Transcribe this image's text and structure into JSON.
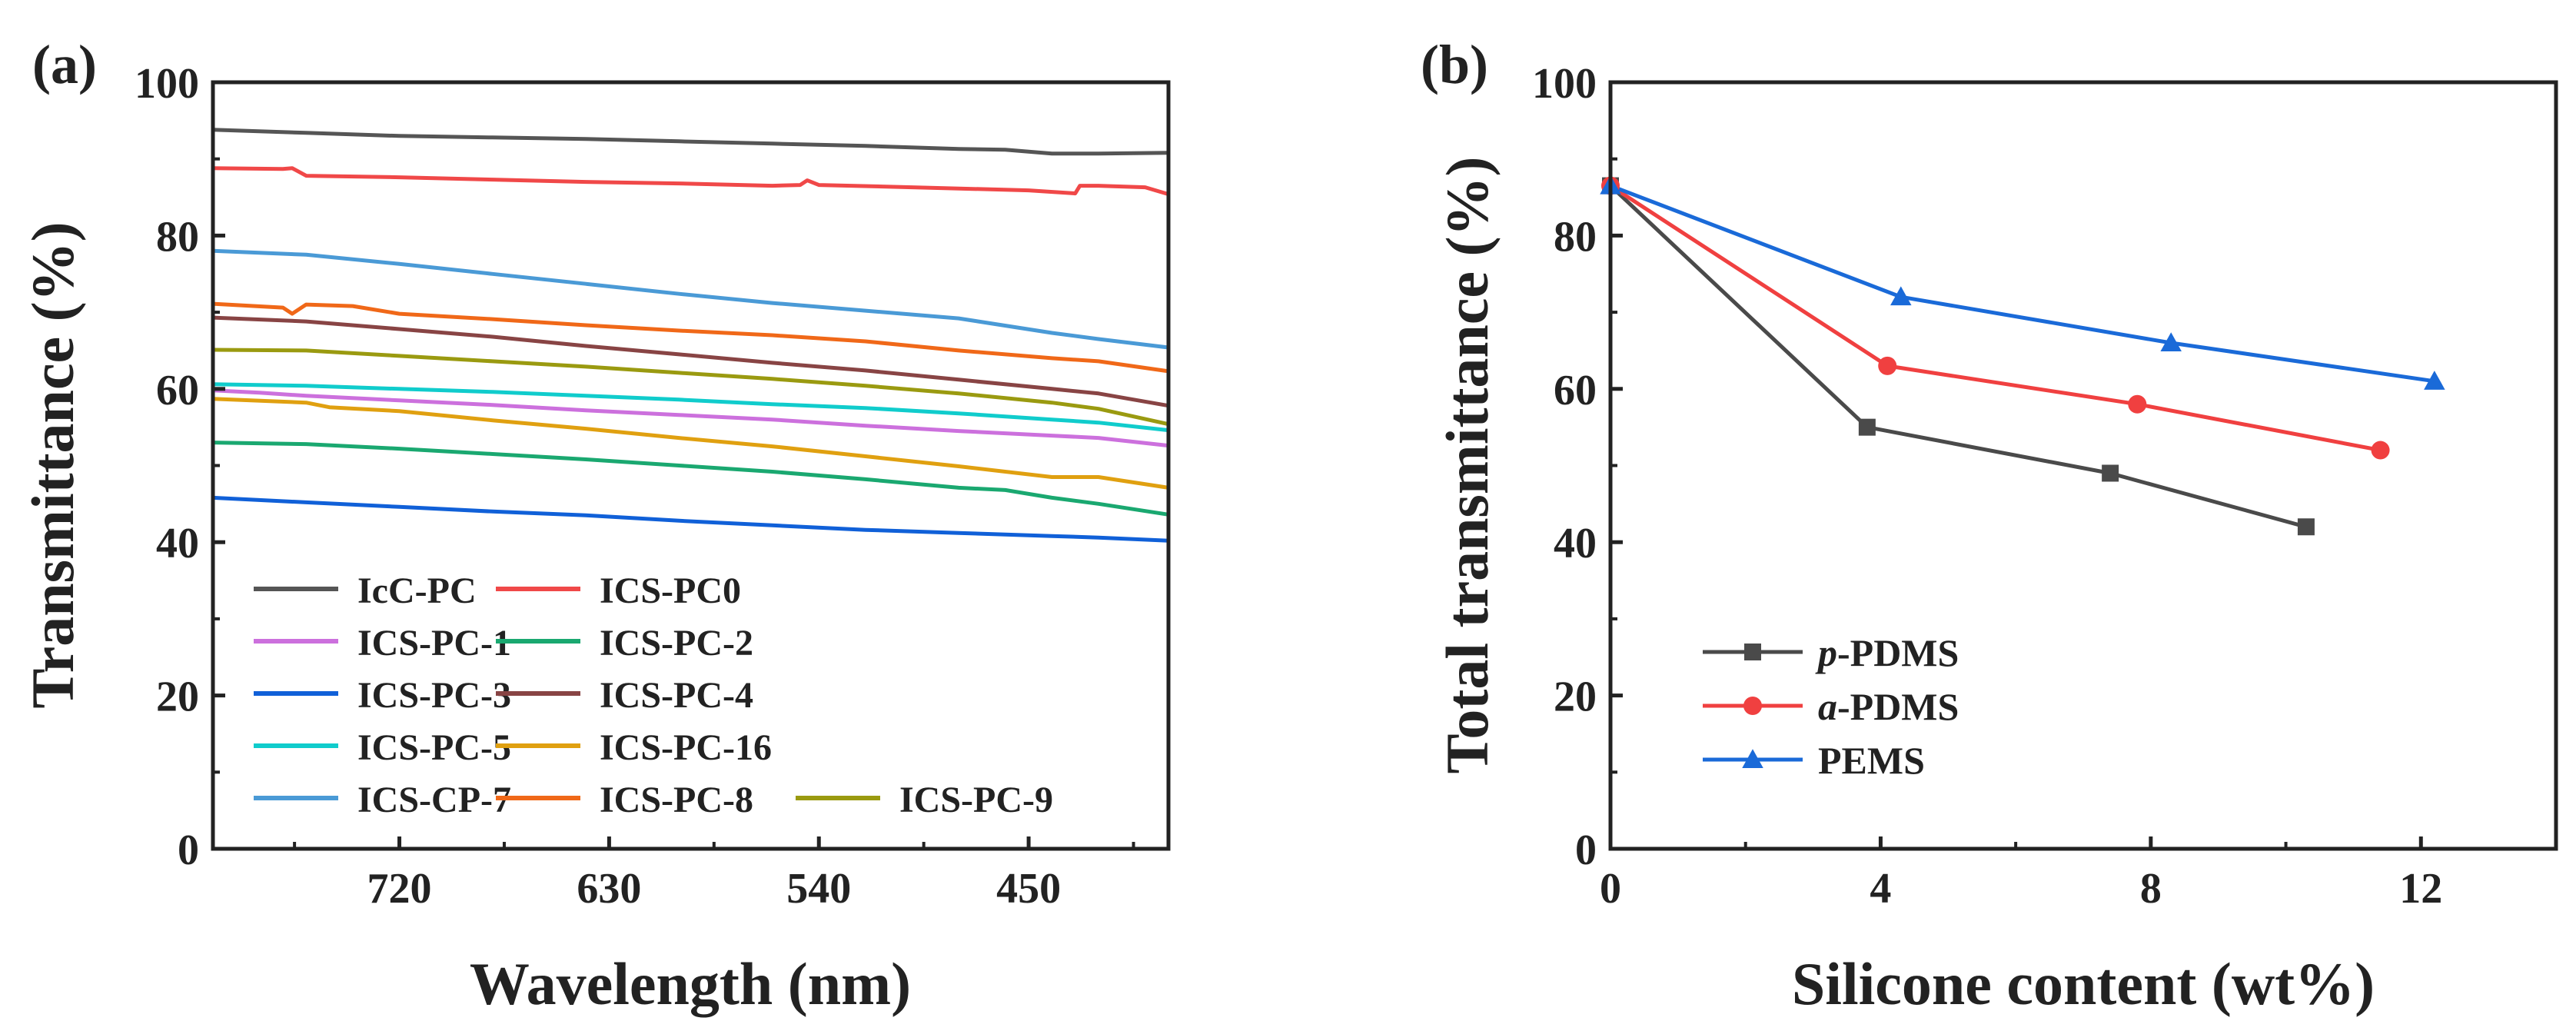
{
  "chart_data": [
    {
      "panel_label": "(a)",
      "type": "line",
      "xlabel": "Wavelength (nm)",
      "ylabel": "Transmittance (%)",
      "xlim": [
        800,
        390
      ],
      "xreversed": true,
      "ylim": [
        0,
        100
      ],
      "xticks": [
        720,
        630,
        540,
        450
      ],
      "yticks": [
        0,
        20,
        40,
        60,
        80,
        100
      ],
      "legend_location": "bottom-left",
      "grid": false,
      "series": [
        {
          "name": "IcC-PC",
          "color": "#555555",
          "x": [
            800,
            760,
            720,
            680,
            640,
            600,
            560,
            520,
            480,
            460,
            440,
            420,
            390
          ],
          "y": [
            93.8,
            93.4,
            93.0,
            92.8,
            92.6,
            92.3,
            92.0,
            91.7,
            91.3,
            91.2,
            90.7,
            90.7,
            90.8
          ]
        },
        {
          "name": "ICS-PC0",
          "color": "#f04848",
          "x": [
            800,
            770,
            766,
            760,
            720,
            680,
            640,
            600,
            560,
            548,
            545,
            540,
            500,
            450,
            430,
            428,
            420,
            400,
            390
          ],
          "y": [
            88.8,
            88.7,
            88.8,
            87.8,
            87.6,
            87.3,
            87.0,
            86.8,
            86.5,
            86.6,
            87.2,
            86.6,
            86.3,
            85.9,
            85.5,
            86.5,
            86.5,
            86.3,
            85.4
          ]
        },
        {
          "name": "ICS-PC-1",
          "color": "#cc70dd",
          "x": [
            800,
            780,
            760,
            720,
            680,
            640,
            600,
            560,
            520,
            480,
            440,
            420,
            390
          ],
          "y": [
            59.8,
            59.5,
            59.1,
            58.5,
            57.9,
            57.2,
            56.6,
            56.0,
            55.2,
            54.5,
            53.9,
            53.6,
            52.6
          ]
        },
        {
          "name": "ICS-PC-2",
          "color": "#1aa870",
          "x": [
            800,
            760,
            720,
            680,
            640,
            600,
            560,
            520,
            480,
            460,
            440,
            420,
            390
          ],
          "y": [
            53.0,
            52.8,
            52.2,
            51.5,
            50.8,
            50.0,
            49.2,
            48.2,
            47.1,
            46.8,
            45.8,
            45.0,
            43.6
          ]
        },
        {
          "name": "ICS-PC-3",
          "color": "#1060d8",
          "x": [
            800,
            760,
            720,
            680,
            640,
            600,
            560,
            520,
            480,
            440,
            420,
            390
          ],
          "y": [
            45.8,
            45.2,
            44.6,
            44.0,
            43.5,
            42.8,
            42.2,
            41.6,
            41.2,
            40.8,
            40.6,
            40.2
          ]
        },
        {
          "name": "ICS-PC-4",
          "color": "#884444",
          "x": [
            800,
            760,
            720,
            680,
            640,
            600,
            560,
            520,
            480,
            440,
            420,
            390
          ],
          "y": [
            69.3,
            68.8,
            67.8,
            66.8,
            65.6,
            64.5,
            63.4,
            62.4,
            61.2,
            60.0,
            59.4,
            57.8
          ]
        },
        {
          "name": "ICS-PC-5",
          "color": "#10cccc",
          "x": [
            800,
            760,
            720,
            680,
            640,
            600,
            560,
            520,
            480,
            440,
            420,
            390
          ],
          "y": [
            60.6,
            60.4,
            60.0,
            59.6,
            59.1,
            58.6,
            58.0,
            57.5,
            56.8,
            56.0,
            55.6,
            54.6
          ]
        },
        {
          "name": "ICS-PC-16",
          "color": "#e0a010",
          "x": [
            800,
            760,
            750,
            720,
            680,
            640,
            600,
            560,
            520,
            480,
            440,
            420,
            390
          ],
          "y": [
            58.7,
            58.2,
            57.6,
            57.1,
            55.9,
            54.8,
            53.6,
            52.5,
            51.2,
            49.9,
            48.5,
            48.5,
            47.1
          ]
        },
        {
          "name": "ICS-CP-7",
          "color": "#4a9ad6",
          "x": [
            800,
            760,
            720,
            680,
            640,
            600,
            560,
            520,
            480,
            440,
            420,
            390
          ],
          "y": [
            78.0,
            77.5,
            76.3,
            75.0,
            73.7,
            72.4,
            71.2,
            70.2,
            69.2,
            67.3,
            66.5,
            65.4
          ]
        },
        {
          "name": "ICS-PC-8",
          "color": "#f06818",
          "x": [
            800,
            770,
            766,
            760,
            740,
            720,
            680,
            640,
            600,
            560,
            520,
            480,
            440,
            420,
            390
          ],
          "y": [
            71.1,
            70.6,
            69.8,
            71.0,
            70.8,
            69.8,
            69.1,
            68.3,
            67.6,
            67.0,
            66.2,
            65.0,
            64.0,
            63.6,
            62.3
          ]
        },
        {
          "name": "ICS-PC-9",
          "color": "#9a9a10",
          "x": [
            800,
            760,
            720,
            680,
            640,
            600,
            560,
            520,
            480,
            440,
            420,
            390
          ],
          "y": [
            65.1,
            65.0,
            64.3,
            63.6,
            62.9,
            62.1,
            61.3,
            60.4,
            59.4,
            58.2,
            57.4,
            55.4
          ]
        }
      ]
    },
    {
      "panel_label": "(b)",
      "type": "line",
      "xlabel": "Silicone content (wt%)",
      "ylabel": "Total transmittance (%)",
      "xlim": [
        0,
        14
      ],
      "ylim": [
        0,
        100
      ],
      "xticks": [
        0,
        4,
        8,
        12
      ],
      "yticks": [
        0,
        20,
        40,
        60,
        80,
        100
      ],
      "legend_location": "bottom-left",
      "grid": false,
      "series": [
        {
          "name_prefix": "p",
          "name_suffix": "-PDMS",
          "marker": "square",
          "color": "#4a4a4a",
          "x": [
            0,
            3.8,
            7.4,
            10.3
          ],
          "y": [
            86.5,
            55,
            49,
            42
          ]
        },
        {
          "name_prefix": "a",
          "name_suffix": "-PDMS",
          "marker": "circle",
          "color": "#f04040",
          "x": [
            0,
            4.1,
            7.8,
            11.4
          ],
          "y": [
            86.5,
            63,
            58,
            52
          ]
        },
        {
          "name_prefix": "",
          "name_suffix": "PEMS",
          "marker": "triangle",
          "color": "#1a6ad8",
          "x": [
            0,
            4.3,
            8.3,
            12.2
          ],
          "y": [
            86.5,
            72,
            66,
            61
          ]
        }
      ]
    }
  ]
}
